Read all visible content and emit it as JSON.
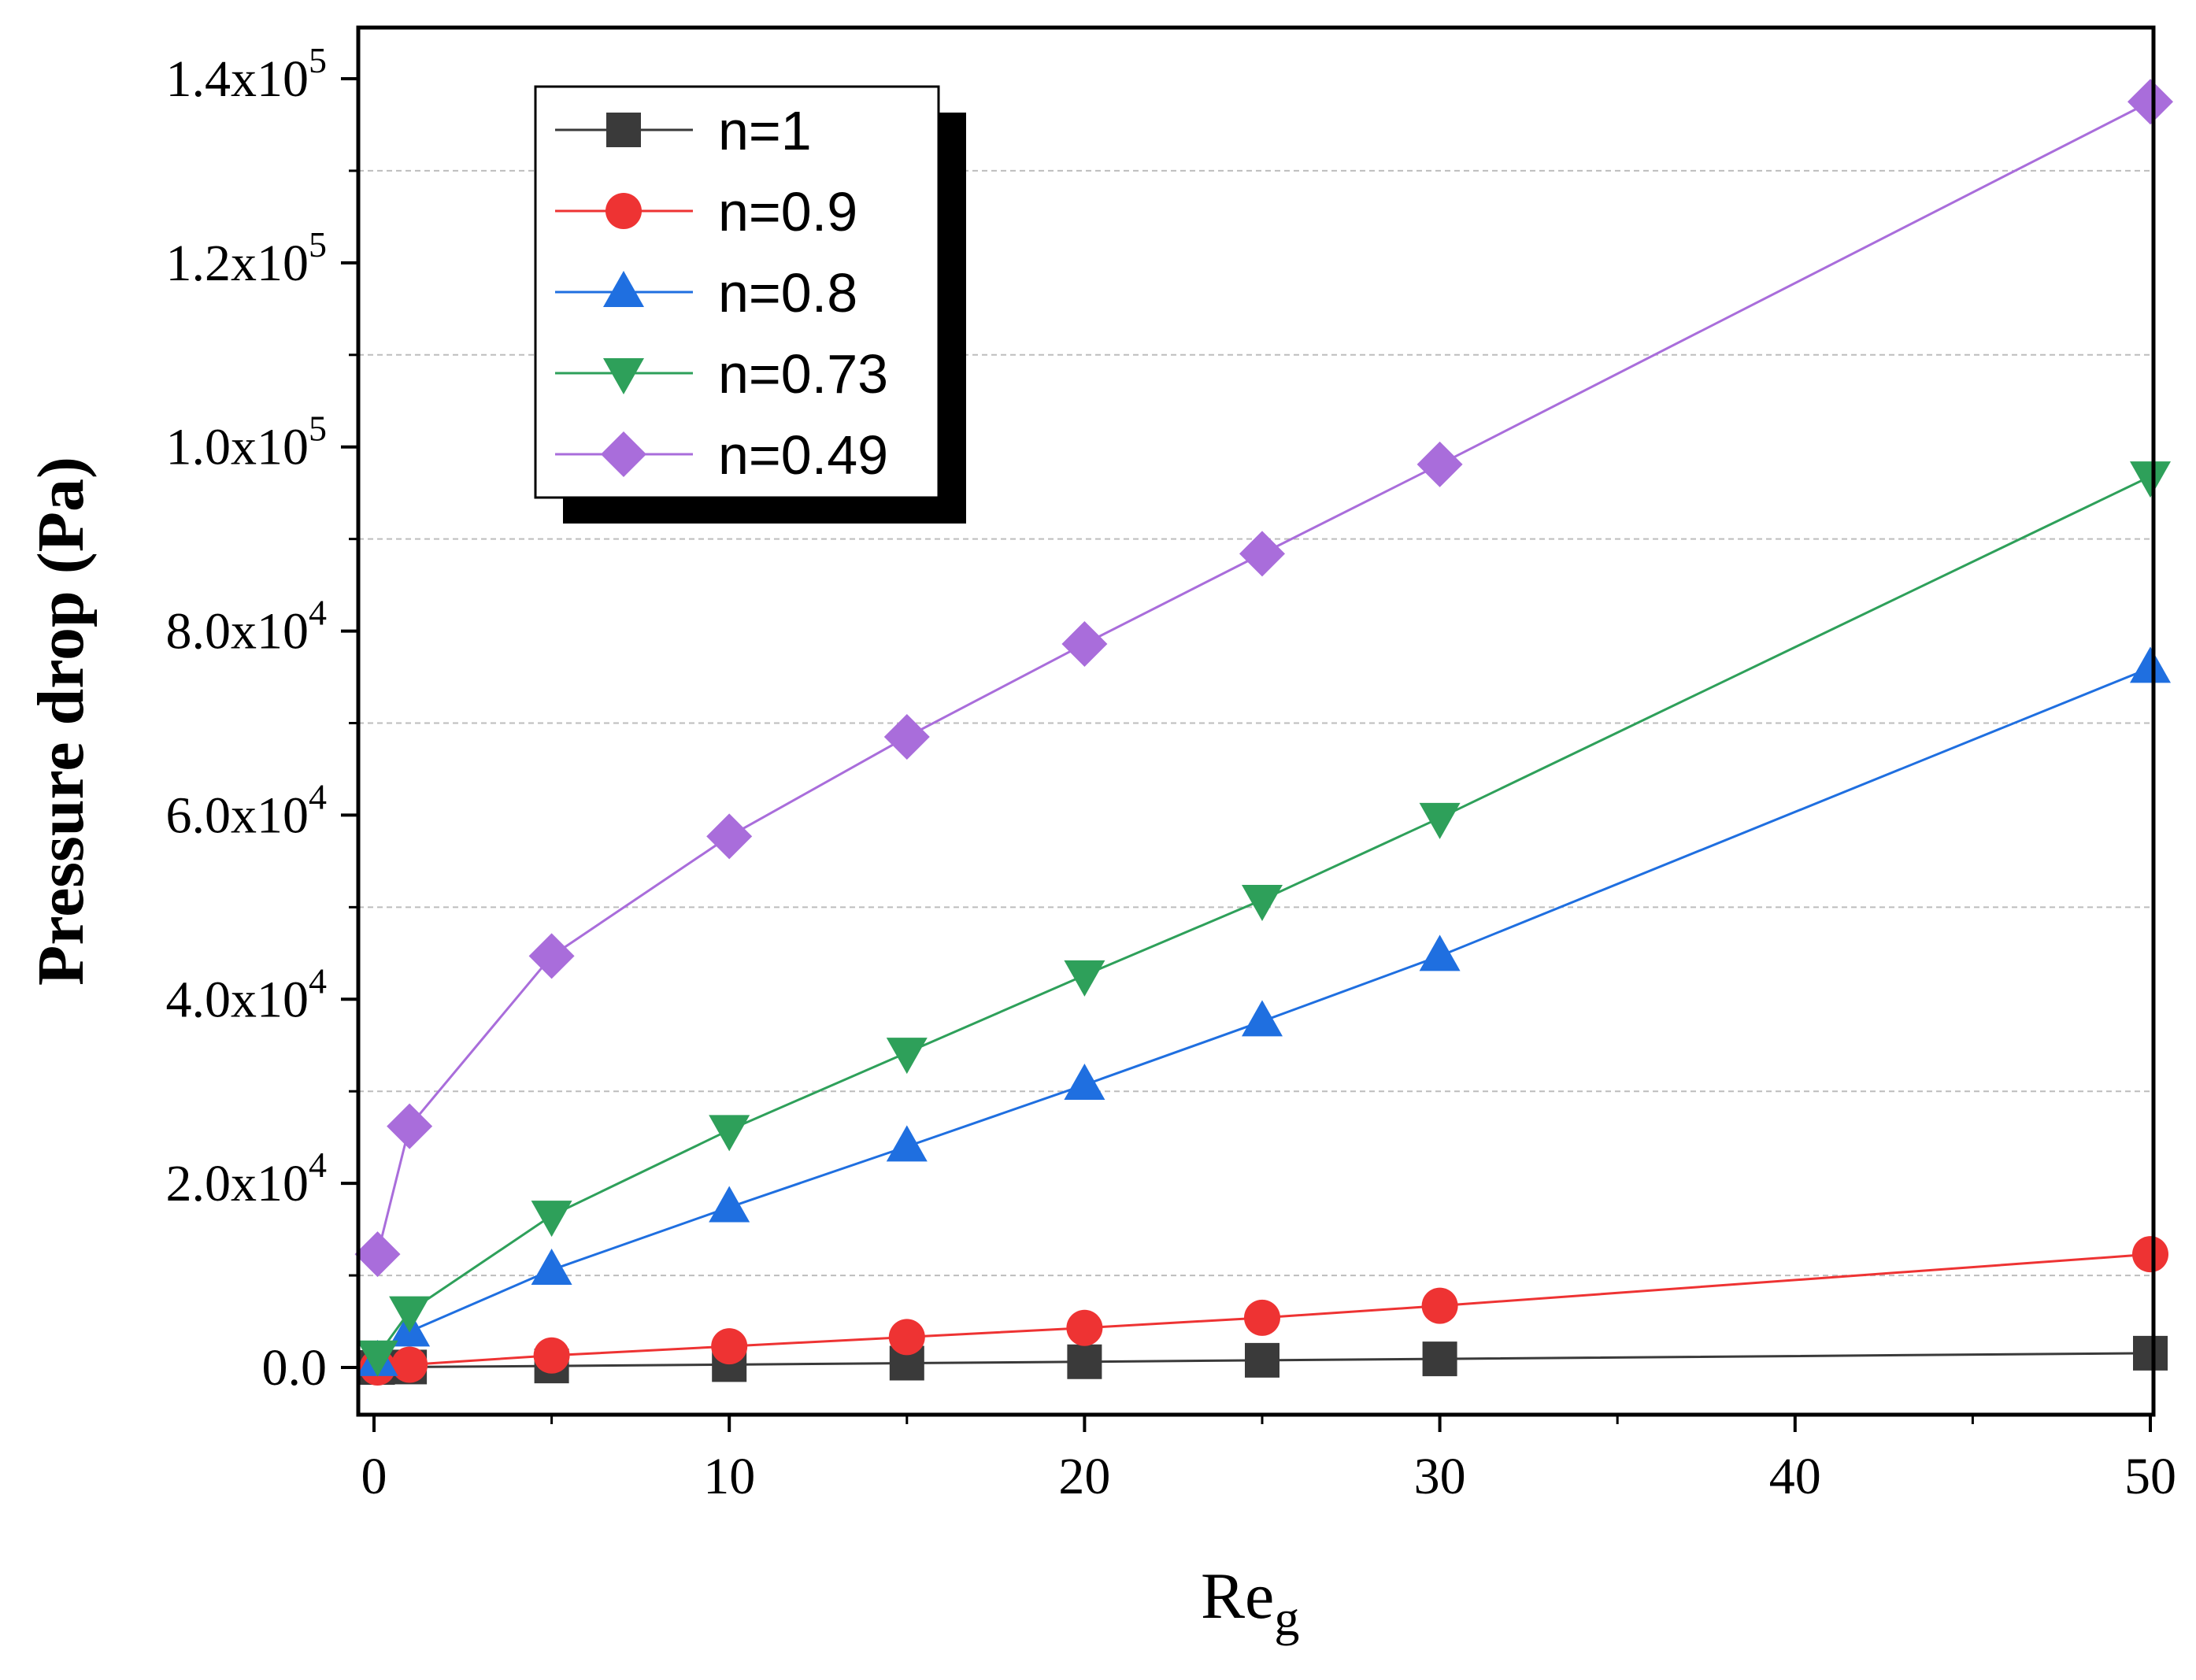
{
  "chart_data": {
    "type": "line",
    "title": "",
    "xlabel": {
      "base": "Re",
      "sub": "g"
    },
    "ylabel": "Pressure drop (Pa)",
    "xlim": [
      -0.5,
      50.3
    ],
    "ylim": [
      -5000,
      140000
    ],
    "x_ticks": [
      0,
      10,
      20,
      30,
      40,
      50
    ],
    "y_ticks": [
      {
        "value": 0,
        "label": "0.0"
      },
      {
        "value": 20000,
        "mantissa": "2.0x10",
        "exp": "4"
      },
      {
        "value": 40000,
        "mantissa": "4.0x10",
        "exp": "4"
      },
      {
        "value": 60000,
        "mantissa": "6.0x10",
        "exp": "4"
      },
      {
        "value": 80000,
        "mantissa": "8.0x10",
        "exp": "4"
      },
      {
        "value": 100000,
        "mantissa": "1.0x10",
        "exp": "5"
      },
      {
        "value": 120000,
        "mantissa": "1.2x10",
        "exp": "5"
      },
      {
        "value": 140000,
        "mantissa": "1.4x10",
        "exp": "5"
      }
    ],
    "grid_y": [
      10000,
      30000,
      50000,
      70000,
      90000,
      110000,
      130000
    ],
    "legend_position": "top-left",
    "x": [
      0.1,
      1,
      5,
      10,
      15,
      20,
      25,
      30,
      50
    ],
    "series": [
      {
        "name": "n=1",
        "color": "#3a3a3a",
        "marker": "square",
        "values": [
          0,
          50,
          160,
          310,
          470,
          620,
          780,
          930,
          1550
        ]
      },
      {
        "name": "n=0.9",
        "color": "#ee3333",
        "marker": "circle",
        "values": [
          0,
          300,
          1300,
          2300,
          3300,
          4300,
          5400,
          6700,
          12300
        ]
      },
      {
        "name": "n=0.8",
        "color": "#1f6fe0",
        "marker": "triangle-up",
        "values": [
          700,
          3900,
          10600,
          17400,
          24000,
          30700,
          37600,
          44700,
          76000
        ]
      },
      {
        "name": "n=0.73",
        "color": "#2ea05a",
        "marker": "triangle-down",
        "values": [
          1300,
          6100,
          16500,
          25800,
          34200,
          42600,
          50800,
          59700,
          96800
        ]
      },
      {
        "name": "n=0.49",
        "color": "#a96ddb",
        "marker": "diamond",
        "values": [
          12300,
          26200,
          44700,
          57700,
          68500,
          78600,
          88400,
          98100,
          137500
        ]
      }
    ]
  }
}
